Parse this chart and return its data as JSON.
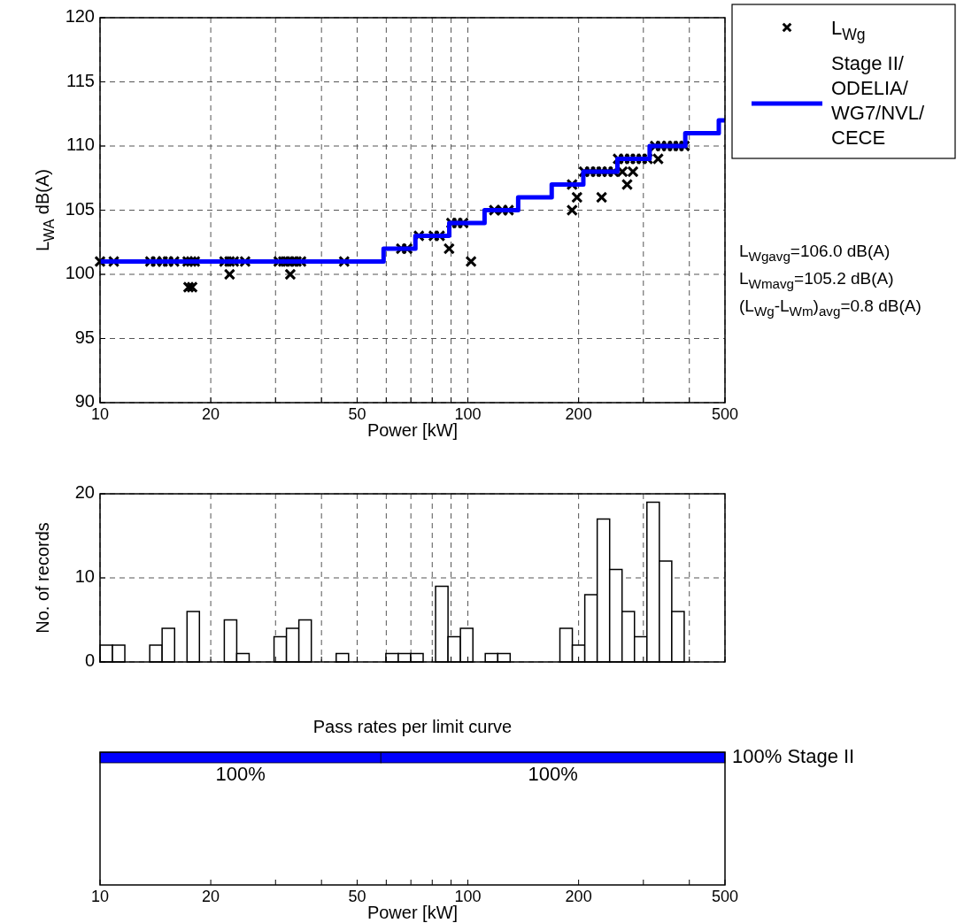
{
  "chart_data": [
    {
      "type": "scatter",
      "ylabel": "L$_{WA}$ dB(A)",
      "xlabel": "Power [kW]",
      "log": "x",
      "grid": true,
      "legend": "top right",
      "xlim": [
        10,
        500
      ],
      "xticks": [
        10,
        20,
        {
          "value": 30,
          "label": null
        },
        {
          "value": 40,
          "label": null
        },
        50,
        {
          "value": 60,
          "label": null
        },
        {
          "value": 70,
          "label": null
        },
        {
          "value": 80,
          "label": null
        },
        {
          "value": 90,
          "label": null
        },
        100,
        200,
        {
          "value": 300,
          "label": null
        },
        {
          "value": 400,
          "label": null
        },
        500
      ],
      "ylim": [
        90,
        120
      ],
      "yticks": [
        90,
        95,
        100,
        105,
        110,
        115,
        120
      ],
      "series": [
        {
          "name": "L$_{Wg}$",
          "type": "scatter",
          "marker": "cross",
          "color": "#000000",
          "x": [
            10.0,
            10.9,
            13.7,
            14.2,
            14.8,
            15.3,
            15.9,
            17.3,
            17.7,
            18.1,
            21.8,
            22.5,
            23.1,
            24.8,
            30.6,
            31.5,
            32.4,
            33.3,
            34.2,
            35.2,
            46.1,
            17.4,
            17.8,
            22.5,
            32.9,
            65.9,
            68.4,
            88.9,
            73.6,
            80.8,
            83.8,
            102,
            90.2,
            93.6,
            97.1,
            118,
            124,
            129,
            192,
            198,
            231,
            192,
            271,
            207,
            215,
            223,
            231,
            240,
            249,
            263,
            281,
            256,
            266,
            276,
            286,
            297,
            308,
            329,
            323,
            335,
            348,
            361,
            374,
            388
          ],
          "values": [
            101,
            101,
            101,
            101,
            101,
            101,
            101,
            101,
            101,
            101,
            101,
            101,
            101,
            101,
            101,
            101,
            101,
            101,
            101,
            101,
            101,
            99,
            99,
            100,
            100,
            102,
            102,
            102,
            103,
            103,
            103,
            101,
            104,
            104,
            104,
            105,
            105,
            105,
            105,
            106,
            106,
            107,
            107,
            108,
            108,
            108,
            108,
            108,
            108,
            108,
            108,
            109,
            109,
            109,
            109,
            109,
            109,
            109,
            110,
            110,
            110,
            110,
            110,
            110
          ]
        },
        {
          "name": "Stage II/ODELIA/WG7/NVL/CECE",
          "type": "step",
          "line_style": "solid",
          "color": "#0000ff",
          "x": [
            10,
            59,
            72,
            89,
            111,
            137,
            169,
            206,
            255,
            312,
            390,
            481,
            500
          ],
          "values": [
            101,
            102,
            103,
            104,
            105,
            106,
            107,
            108,
            109,
            110,
            111,
            112,
            112
          ]
        }
      ],
      "annotations": [
        "L$_{Wgavg}$=106.0 dB(A)",
        "L$_{Wmavg}$=105.2 dB(A)",
        "(L$_{Wg}$-L$_{Wm}$)$_{avg}$=0.8 dB(A)"
      ]
    },
    {
      "type": "histogram",
      "ylabel": "No. of records",
      "log": "x",
      "grid": true,
      "tick_labels": "y",
      "color": "#ffffff",
      "xlim": [
        10,
        500
      ],
      "xticks": [
        10,
        20,
        {
          "value": 30,
          "label": null
        },
        {
          "value": 40,
          "label": null
        },
        50,
        {
          "value": 60,
          "label": null
        },
        {
          "value": 70,
          "label": null
        },
        {
          "value": 80,
          "label": null
        },
        {
          "value": 90,
          "label": null
        },
        100,
        200,
        {
          "value": 300,
          "label": null
        },
        {
          "value": 400,
          "label": null
        },
        500
      ],
      "ylim": [
        0,
        20
      ],
      "yticks": [
        0,
        10,
        20
      ],
      "bins": [
        10,
        10.81,
        11.68,
        12.63,
        13.65,
        14.75,
        15.95,
        17.24,
        18.63,
        20.14,
        21.77,
        23.53,
        25.43,
        27.49,
        29.72,
        32.12,
        34.72,
        37.53,
        40.57,
        43.85,
        47.39,
        51.22,
        55.37,
        59.85,
        64.69,
        69.92,
        75.58,
        81.7,
        88.31,
        95.45,
        103.2,
        111.5,
        120.6,
        130.3,
        140.9,
        152.3,
        164.6,
        177.9,
        192.3,
        207.9,
        224.7,
        242.9,
        262.5,
        283.7,
        306.7,
        331.5,
        358.3,
        387.3,
        418.7,
        452.6
      ],
      "values": [
        2,
        2,
        0,
        0,
        2,
        4,
        0,
        6,
        0,
        0,
        5,
        1,
        0,
        0,
        3,
        4,
        5,
        0,
        0,
        1,
        0,
        0,
        0,
        1,
        1,
        1,
        0,
        9,
        3,
        4,
        0,
        1,
        1,
        0,
        0,
        0,
        0,
        4,
        2,
        8,
        17,
        11,
        6,
        3,
        19,
        12,
        6,
        0,
        0
      ]
    },
    {
      "type": "bar",
      "orientation": "horizontal",
      "title": "Pass rates per limit curve",
      "xlabel": "Power [kW]",
      "log": "x",
      "xlim": [
        10,
        500
      ],
      "xticks": [
        10,
        20,
        {
          "value": 30,
          "label": null
        },
        {
          "value": 40,
          "label": null
        },
        50,
        {
          "value": 60,
          "label": null
        },
        {
          "value": 70,
          "label": null
        },
        {
          "value": 80,
          "label": null
        },
        {
          "value": 90,
          "label": null
        },
        100,
        200,
        {
          "value": 300,
          "label": null
        },
        {
          "value": 400,
          "label": null
        },
        500
      ],
      "categories": [
        "100% Stage II"
      ],
      "series": [
        {
          "color": "#0000ff",
          "base": [
            10
          ],
          "values": [
            48
          ]
        },
        {
          "color": "#0000ff",
          "base": [
            58
          ],
          "values": [
            442
          ]
        }
      ],
      "annotations": [
        "100%",
        "100%"
      ]
    }
  ]
}
